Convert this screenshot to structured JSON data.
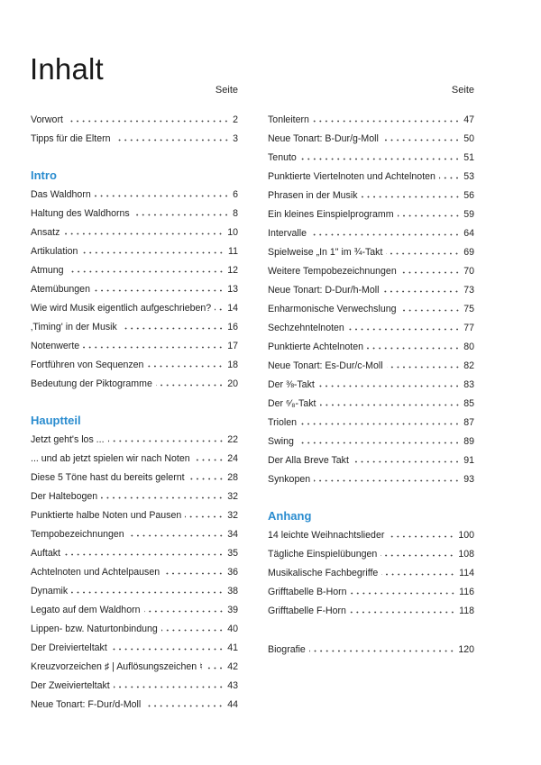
{
  "title": "Inhalt",
  "accent_color": "#2a8ccf",
  "left": {
    "seite_label": "Seite",
    "sections": [
      {
        "heading": "",
        "entries": [
          {
            "label": "Vorwort",
            "page": "2"
          },
          {
            "label": "Tipps für die Eltern",
            "page": "3"
          }
        ]
      },
      {
        "heading": "Intro",
        "entries": [
          {
            "label": "Das Waldhorn",
            "page": "6"
          },
          {
            "label": "Haltung des Waldhorns",
            "page": "8"
          },
          {
            "label": "Ansatz",
            "page": "10"
          },
          {
            "label": "Artikulation",
            "page": "11"
          },
          {
            "label": "Atmung",
            "page": "12"
          },
          {
            "label": "Atemübungen",
            "page": "13"
          },
          {
            "label": "Wie wird Musik eigentlich aufgeschrieben?",
            "page": "14"
          },
          {
            "label": "‚Timing' in der Musik",
            "page": "16"
          },
          {
            "label": "Notenwerte",
            "page": "17"
          },
          {
            "label": "Fortführen von Sequenzen",
            "page": "18"
          },
          {
            "label": "Bedeutung der Piktogramme",
            "page": "20"
          }
        ]
      },
      {
        "heading": "Hauptteil",
        "entries": [
          {
            "label": "Jetzt geht's los ...",
            "page": "22"
          },
          {
            "label": "... und ab jetzt spielen wir nach Noten",
            "page": "24"
          },
          {
            "label": "Diese 5 Töne hast du bereits gelernt",
            "page": "28"
          },
          {
            "label": "Der Haltebogen",
            "page": "32"
          },
          {
            "label": "Punktierte halbe Noten und Pausen",
            "page": "32"
          },
          {
            "label": "Tempobezeichnungen",
            "page": "34"
          },
          {
            "label": "Auftakt",
            "page": "35"
          },
          {
            "label": "Achtelnoten und Achtelpausen",
            "page": "36"
          },
          {
            "label": "Dynamik",
            "page": "38"
          },
          {
            "label": "Legato auf dem Waldhorn",
            "page": "39"
          },
          {
            "label": "Lippen- bzw. Naturtonbindung",
            "page": "40"
          },
          {
            "label": "Der Dreivierteltakt",
            "page": "41"
          },
          {
            "label": "Kreuzvorzeichen ♯ | Auflösungszeichen ♮",
            "page": "42"
          },
          {
            "label": "Der Zweivierteltakt",
            "page": "43"
          },
          {
            "label": "Neue Tonart: F-Dur/d-Moll",
            "page": "44"
          }
        ]
      }
    ]
  },
  "right": {
    "seite_label": "Seite",
    "sections": [
      {
        "heading": "",
        "entries": [
          {
            "label": "Tonleitern",
            "page": "47"
          },
          {
            "label": "Neue Tonart: B-Dur/g-Moll",
            "page": "50"
          },
          {
            "label": "Tenuto",
            "page": "51"
          },
          {
            "label": "Punktierte Viertelnoten und Achtelnoten",
            "page": "53"
          },
          {
            "label": "Phrasen in der Musik",
            "page": "56"
          },
          {
            "label": "Ein kleines Einspielprogramm",
            "page": "59"
          },
          {
            "label": "Intervalle",
            "page": "64"
          },
          {
            "label": "Spielweise „In 1\" im ¾-Takt",
            "page": "69"
          },
          {
            "label": "Weitere Tempobezeichnungen",
            "page": "70"
          },
          {
            "label": "Neue Tonart: D-Dur/h-Moll",
            "page": "73"
          },
          {
            "label": "Enharmonische Verwechslung",
            "page": "75"
          },
          {
            "label": "Sechzehntelnoten",
            "page": "77"
          },
          {
            "label": "Punktierte Achtelnoten",
            "page": "80"
          },
          {
            "label": "Neue Tonart: Es-Dur/c-Moll",
            "page": "82"
          },
          {
            "label": "Der ⅜-Takt",
            "page": "83"
          },
          {
            "label": "Der ⁶⁄₈-Takt",
            "page": "85"
          },
          {
            "label": "Triolen",
            "page": "87"
          },
          {
            "label": "Swing",
            "page": "89"
          },
          {
            "label": "Der Alla Breve Takt",
            "page": "91"
          },
          {
            "label": "Synkopen",
            "page": "93"
          }
        ]
      },
      {
        "heading": "Anhang",
        "entries": [
          {
            "label": "14 leichte Weihnachtslieder",
            "page": "100"
          },
          {
            "label": "Tägliche Einspielübungen",
            "page": "108"
          },
          {
            "label": "Musikalische Fachbegriffe",
            "page": "114"
          },
          {
            "label": "Grifftabelle B-Horn",
            "page": "116"
          },
          {
            "label": "Grifftabelle F-Horn",
            "page": "118"
          },
          {
            "gap": true
          },
          {
            "label": "Biografie",
            "page": "120"
          }
        ]
      }
    ]
  }
}
